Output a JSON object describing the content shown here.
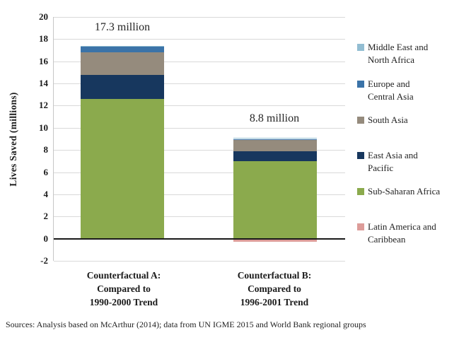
{
  "chart_data": {
    "type": "bar",
    "stacked": true,
    "ylabel": "Lives Saved (millions)",
    "ylim": [
      -2,
      20
    ],
    "yticks": [
      20,
      18,
      16,
      14,
      12,
      10,
      8,
      6,
      4,
      2,
      0,
      -2
    ],
    "grid": true,
    "legend_position": "right",
    "categories": [
      "Counterfactual A:\nCompared to\n1990-2000 Trend",
      "Counterfactual B:\nCompared to\n1996-2001 Trend"
    ],
    "series": [
      {
        "name": "Middle East and\nNorth Africa",
        "color": "#92BDD2",
        "values": [
          0.1,
          0.1
        ]
      },
      {
        "name": "Europe and\nCentral Asia",
        "color": "#3B73A8",
        "values": [
          0.5,
          0.1
        ]
      },
      {
        "name": "South Asia",
        "color": "#958B7D",
        "values": [
          2.0,
          1.0
        ]
      },
      {
        "name": "East Asia and\nPacific",
        "color": "#17375E",
        "values": [
          2.2,
          0.9
        ]
      },
      {
        "name": "Sub-Saharan Africa",
        "color": "#8BAA4D",
        "values": [
          12.6,
          7.0
        ]
      },
      {
        "name": "Latin America and\nCaribbean",
        "color": "#DD9C99",
        "values": [
          -0.1,
          -0.3
        ]
      }
    ],
    "bar_total_labels": [
      "17.3 million",
      "8.8 million"
    ],
    "bar_totals": [
      17.3,
      8.8
    ]
  },
  "colors": {
    "gridline": "#D9D9D9",
    "zero_axis": "#1A1A1A",
    "text": "#1A1A1A"
  },
  "source_note": "Sources: Analysis based on McArthur (2014); data from UN IGME 2015 and World Bank regional groups"
}
